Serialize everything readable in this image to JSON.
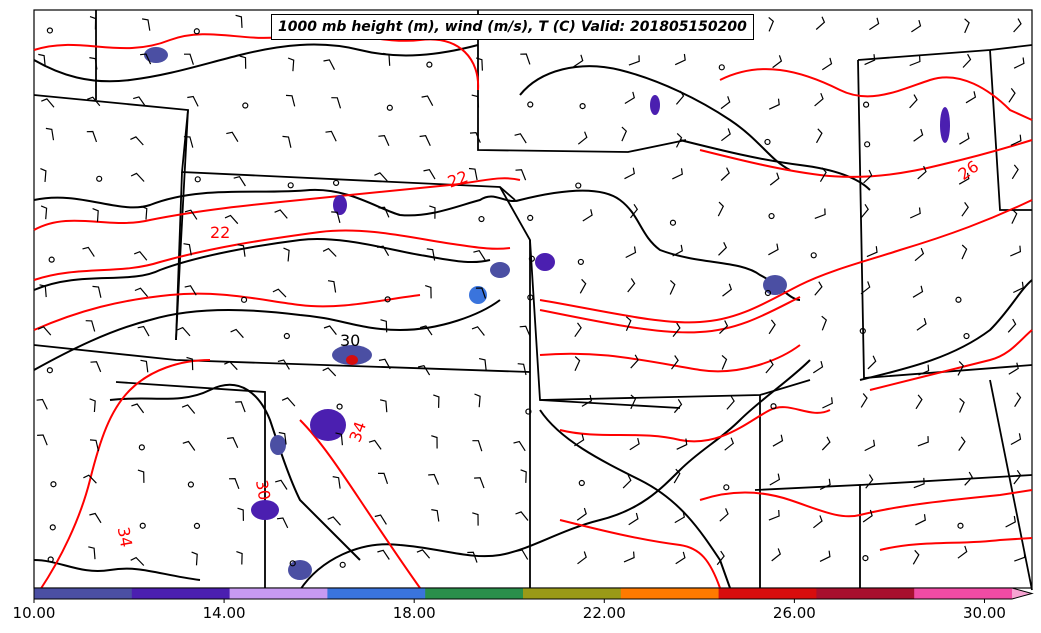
{
  "title": "1000 mb height (m), wind (m/s), T (C) Valid: 201805150200",
  "colorbar": {
    "tick_labels": [
      "10.00",
      "14.00",
      "18.00",
      "22.00",
      "26.00",
      "30.00"
    ],
    "tick_values": [
      10,
      14,
      18,
      22,
      26,
      30
    ],
    "range": [
      10,
      31
    ],
    "colors": [
      "#4b4fa3",
      "#4b1fb0",
      "#c79af2",
      "#3a74dd",
      "#2a8f4b",
      "#9a9a17",
      "#ff7a00",
      "#d80d0d",
      "#a8102e",
      "#f04ba4",
      "#f6a4d2"
    ]
  },
  "contour_labels": [
    {
      "text": "22",
      "color": "#ff0000"
    },
    {
      "text": "22",
      "color": "#ff0000"
    },
    {
      "text": "26",
      "color": "#ff0000"
    },
    {
      "text": "30",
      "color": "#000000"
    },
    {
      "text": "34",
      "color": "#ff0000"
    },
    {
      "text": "34",
      "color": "#ff0000"
    },
    {
      "text": "30",
      "color": "#ff0000"
    }
  ],
  "colors": {
    "temperature_contour": "#ff0000",
    "height_contour": "#000000",
    "state_border": "#000000"
  }
}
